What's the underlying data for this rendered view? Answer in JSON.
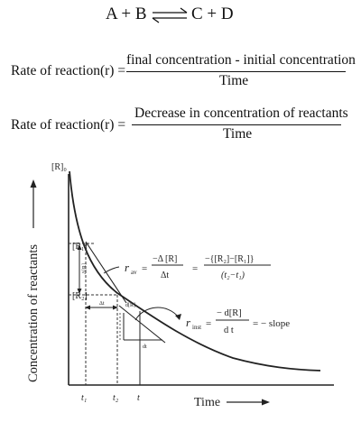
{
  "equation": {
    "left": "A + B",
    "right": "C + D"
  },
  "formula1": {
    "label": "Rate of reaction(r) =",
    "numerator": "final concentration - initial concentration",
    "denominator": "Time"
  },
  "formula2": {
    "label": "Rate of reaction(r) =",
    "numerator": "Decrease in concentration of reactants",
    "denominator": "Time"
  },
  "graph": {
    "y_axis_label": "Concentration of reactants",
    "x_axis_label": "Time",
    "y_origin_label": "[R]₀",
    "y_tick_1": "[R₁]",
    "y_tick_2": "[R₂]",
    "delta_r": "Δ[R]",
    "delta_t": "Δt",
    "d_r": "d[R]",
    "d_t": "dt",
    "x_tick_1": "t₁",
    "x_tick_2": "t₂",
    "x_tick_3": "t",
    "r_av": {
      "symbol": "r",
      "sub": "av",
      "frac1_num": "−Δ [R]",
      "frac1_den": "Δt",
      "frac2_num": "−{[R₂]−[R₁]}",
      "frac2_den": "(t₂−t₁)"
    },
    "r_inst": {
      "symbol": "r",
      "sub": "inst",
      "frac_num": "− d[R]",
      "frac_den": "d t",
      "tail": "= − slope"
    }
  }
}
